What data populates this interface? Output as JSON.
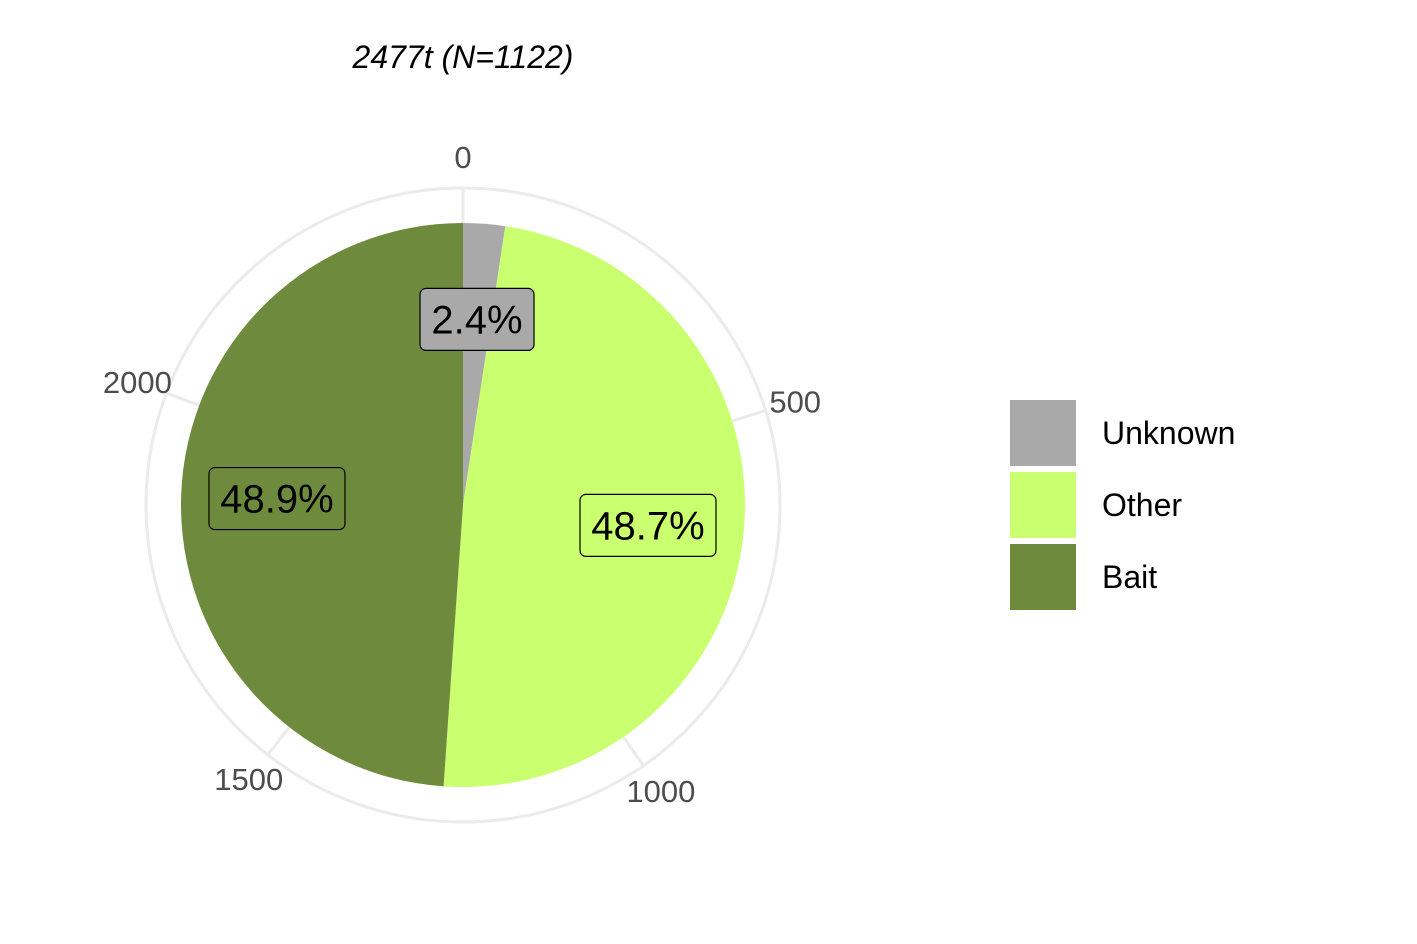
{
  "chart_data": {
    "type": "pie",
    "title": "2477t (N=1122)",
    "total": 2477,
    "categories": [
      "Bait",
      "Other",
      "Unknown"
    ],
    "values": [
      1211.3,
      1206.3,
      59.4
    ],
    "percent_labels": [
      "48.9%",
      "48.7%",
      "2.4%"
    ],
    "colors": [
      "#6e8b3d",
      "#caff70",
      "#a9a9a9"
    ],
    "axis_ticks": [
      0,
      500,
      1000,
      1500,
      2000
    ],
    "axis_tick_labels": [
      "0",
      "500",
      "1000",
      "1500",
      "2000"
    ],
    "direction": "clockwise from top",
    "grid": true,
    "legend": {
      "position": "right",
      "entries": [
        "Unknown",
        "Other",
        "Bait"
      ],
      "colors": [
        "#a9a9a9",
        "#caff70",
        "#6e8b3d"
      ]
    }
  }
}
